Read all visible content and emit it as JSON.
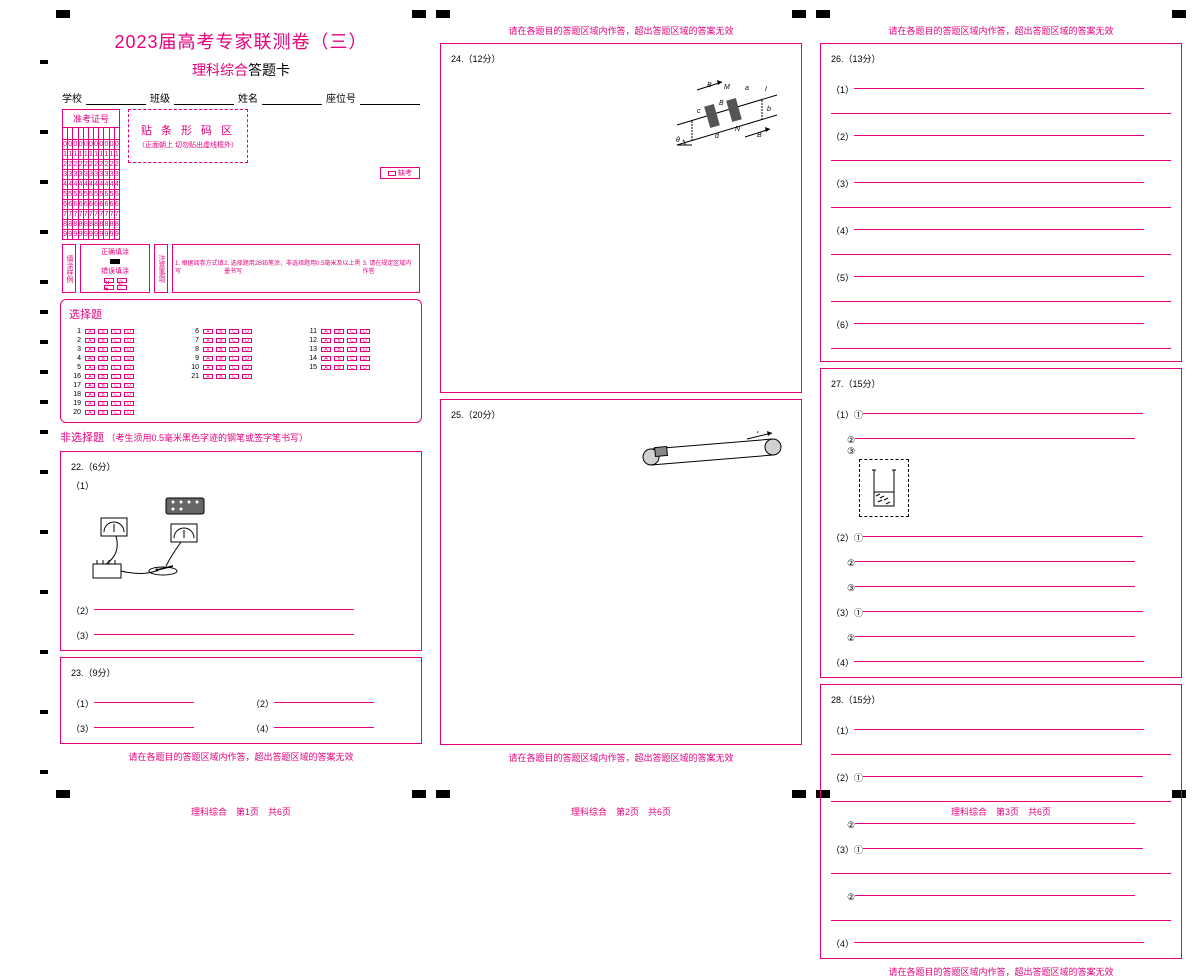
{
  "colors": {
    "pink": "#e6007e",
    "black": "#000000",
    "white": "#ffffff"
  },
  "header": {
    "title": "2023届高考专家联测卷（三）",
    "subtitle_prefix": "理科综合",
    "subtitle_suffix": "答题卡"
  },
  "info": {
    "school": "学校",
    "class": "班级",
    "name": "姓名",
    "seat": "座位号",
    "exam_id": "准考证号",
    "digits": [
      "0",
      "1",
      "2",
      "3",
      "4",
      "5",
      "6",
      "7",
      "8",
      "9"
    ],
    "columns": 11
  },
  "barcode": {
    "title": "贴 条 形 码 区",
    "note": "（正面朝上  切勿贴出虚线框外）"
  },
  "exam_tag": "缺考",
  "fill_guide": {
    "label": "填涂样例",
    "correct": "正确填涂",
    "wrong": "错误填涂",
    "attention": "注意事项",
    "notes": [
      "1. 根据阅卷方式填写",
      "2. 选择题用2B铅笔涂，非选择题用0.5毫米及以上黑墨书写",
      "3. 请在规定区域内作答"
    ]
  },
  "mcq": {
    "title": "选择题",
    "options": [
      "A",
      "B",
      "C",
      "D"
    ],
    "rows": [
      [
        1,
        6,
        11
      ],
      [
        2,
        7,
        12
      ],
      [
        3,
        8,
        13
      ],
      [
        4,
        9,
        14
      ],
      [
        5,
        10,
        15
      ],
      [
        16,
        21,
        null
      ],
      [
        17,
        null,
        null
      ],
      [
        18,
        null,
        null
      ],
      [
        19,
        null,
        null
      ],
      [
        20,
        null,
        null
      ]
    ]
  },
  "frq": {
    "title": "非选择题",
    "note": "（考生须用0.5毫米黑色字迹的钢笔或签字笔书写）"
  },
  "q22": {
    "title": "22.（6分）",
    "s1": "（1）",
    "s2": "（2）",
    "s3": "（3）"
  },
  "q23": {
    "title": "23.（9分）",
    "s1": "（1）",
    "s2": "（2）",
    "s3": "（3）",
    "s4": "（4）"
  },
  "q24": {
    "title": "24.（12分）"
  },
  "q25": {
    "title": "25.（20分）"
  },
  "q26": {
    "title": "26.（13分）",
    "subs": [
      "（1）",
      "（2）",
      "（3）",
      "（4）",
      "（5）",
      "（6）"
    ]
  },
  "q27": {
    "title": "27.（15分）",
    "s1": "（1）①",
    "c2": "②",
    "c3": "③",
    "s2": "（2）①",
    "s3": "（3）①",
    "s4": "（4）"
  },
  "q28": {
    "title": "28.（15分）",
    "s1": "（1）",
    "s2": "（2）①",
    "c2": "②",
    "s3": "（3）①",
    "s4": "（4）"
  },
  "warning": "请在各题目的答题区域内作答，超出答题区域的答案无效",
  "footers": [
    "理科综合　第1页　共6页",
    "理科综合　第2页　共6页",
    "理科综合　第3页　共6页"
  ],
  "diag24": {
    "labels": [
      "B",
      "M",
      "a",
      "I",
      "c",
      "B",
      "b",
      "θ",
      "d",
      "N",
      "B"
    ]
  },
  "diag25": {
    "label": "F"
  }
}
